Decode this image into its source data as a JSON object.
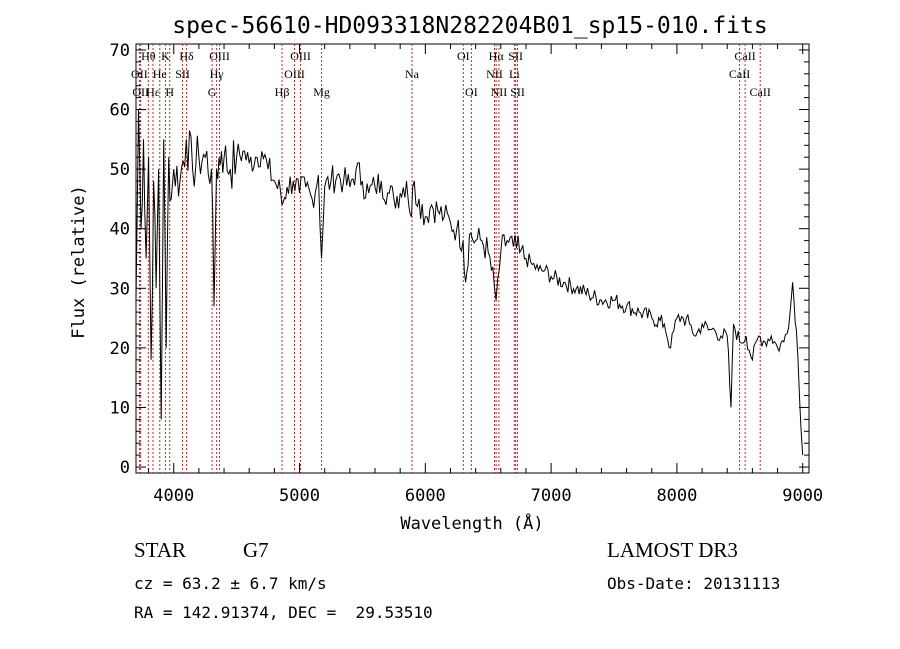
{
  "chart_data": {
    "type": "line",
    "title": "spec-56610-HD093318N282204B01_sp15-010.fits",
    "xlabel": "Wavelength (Å)",
    "ylabel": "Flux (relative)",
    "xlim": [
      3700,
      9050
    ],
    "ylim": [
      -1,
      71
    ],
    "xticks": [
      4000,
      5000,
      6000,
      7000,
      8000,
      9000
    ],
    "yticks": [
      0,
      10,
      20,
      30,
      40,
      50,
      60,
      70
    ],
    "series": [
      {
        "name": "spectrum",
        "x": [
          3700,
          3720,
          3740,
          3760,
          3780,
          3800,
          3820,
          3840,
          3860,
          3880,
          3900,
          3920,
          3940,
          3960,
          3980,
          4000,
          4050,
          4100,
          4150,
          4200,
          4250,
          4300,
          4320,
          4340,
          4380,
          4400,
          4450,
          4500,
          4550,
          4600,
          4650,
          4700,
          4750,
          4800,
          4850,
          4861,
          4900,
          4950,
          5000,
          5050,
          5100,
          5150,
          5175,
          5200,
          5250,
          5300,
          5350,
          5400,
          5450,
          5500,
          5550,
          5600,
          5650,
          5700,
          5750,
          5800,
          5850,
          5890,
          5900,
          5950,
          6000,
          6050,
          6100,
          6150,
          6200,
          6250,
          6300,
          6320,
          6350,
          6400,
          6450,
          6500,
          6550,
          6563,
          6600,
          6650,
          6700,
          6750,
          6800,
          6850,
          6900,
          6950,
          7000,
          7100,
          7200,
          7300,
          7400,
          7500,
          7600,
          7700,
          7800,
          7900,
          7950,
          8000,
          8050,
          8100,
          8150,
          8200,
          8250,
          8300,
          8350,
          8400,
          8430,
          8450,
          8500,
          8550,
          8600,
          8650,
          8700,
          8750,
          8800,
          8850,
          8900,
          8920,
          8950,
          9000
        ],
        "y": [
          28,
          60,
          40,
          55,
          35,
          52,
          18,
          48,
          30,
          50,
          8,
          55,
          20,
          52,
          45,
          50,
          48,
          55,
          50,
          52,
          52,
          50,
          27,
          50,
          53,
          52,
          50,
          52,
          53,
          51,
          52,
          53,
          50,
          48,
          46,
          44,
          47,
          48,
          46,
          47,
          45,
          49,
          35,
          47,
          48,
          49,
          48,
          47,
          50,
          48,
          46,
          47,
          48,
          46,
          45,
          46,
          48,
          42,
          47,
          45,
          42,
          44,
          43,
          42,
          41,
          40,
          38,
          31,
          39,
          38,
          38,
          36,
          30,
          28,
          36,
          38,
          37,
          36,
          35,
          34,
          33,
          33,
          32,
          31,
          30,
          29,
          28,
          28,
          27,
          26,
          25,
          24,
          20,
          25,
          25,
          24,
          22,
          24,
          23,
          23,
          22,
          22,
          10,
          24,
          21,
          22,
          18,
          22,
          21,
          22,
          20,
          21,
          26,
          31,
          23,
          2
        ]
      }
    ],
    "lines": [
      {
        "label": "Hθ",
        "x": 3798,
        "row": 1
      },
      {
        "label": "OII",
        "x": 3727,
        "row": 2
      },
      {
        "label": "OII",
        "x": 3737,
        "row": 3
      },
      {
        "label": "Hε",
        "x": 3835,
        "row": 3
      },
      {
        "label": "He",
        "x": 3889,
        "row": 2
      },
      {
        "label": "K",
        "x": 3934,
        "row": 1
      },
      {
        "label": "H",
        "x": 3968,
        "row": 3
      },
      {
        "label": "SII",
        "x": 4070,
        "row": 2
      },
      {
        "label": "Hδ",
        "x": 4102,
        "row": 1
      },
      {
        "label": "Hγ",
        "x": 4341,
        "row": 2
      },
      {
        "label": "OIII",
        "x": 4364,
        "row": 1
      },
      {
        "label": "G",
        "x": 4305,
        "row": 3
      },
      {
        "label": "Hβ",
        "x": 4861,
        "row": 3
      },
      {
        "label": "OIII",
        "x": 4960,
        "row": 2
      },
      {
        "label": "OIII",
        "x": 5008,
        "row": 1
      },
      {
        "label": "Mg",
        "x": 5175,
        "row": 3
      },
      {
        "label": "Na",
        "x": 5894,
        "row": 2
      },
      {
        "label": "OI",
        "x": 6302,
        "row": 1
      },
      {
        "label": "OI",
        "x": 6366,
        "row": 3
      },
      {
        "label": "NII",
        "x": 6550,
        "row": 2
      },
      {
        "label": "Hα",
        "x": 6563,
        "row": 1
      },
      {
        "label": "NII",
        "x": 6585,
        "row": 3
      },
      {
        "label": "SII",
        "x": 6718,
        "row": 1
      },
      {
        "label": "Li",
        "x": 6708,
        "row": 2
      },
      {
        "label": "SII",
        "x": 6733,
        "row": 3
      },
      {
        "label": "CaII",
        "x": 8498,
        "row": 2
      },
      {
        "label": "CaII",
        "x": 8542,
        "row": 1
      },
      {
        "label": "CaII",
        "x": 8662,
        "row": 3
      }
    ]
  },
  "info": {
    "object_class": "STAR",
    "subclass": "G7",
    "survey": "LAMOST DR3",
    "redshift": "cz = 63.2 ± 6.7 km/s",
    "obs_date": "Obs-Date: 20131113",
    "coords": "RA = 142.91374, DEC =  29.53510"
  }
}
